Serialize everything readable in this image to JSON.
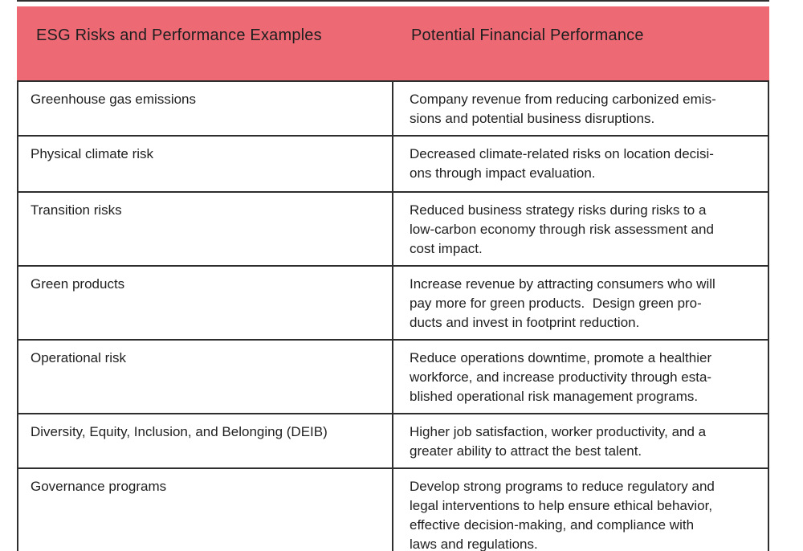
{
  "figure": {
    "header": {
      "left": "ESG Risks and Performance Examples",
      "right": "Potential Financial Performance"
    },
    "rows": [
      {
        "risk": "Greenhouse gas emissions",
        "performance": "Company revenue from reducing carbonized emis-\nsions and potential business disruptions."
      },
      {
        "risk": "Physical climate risk",
        "performance": "Decreased climate-related risks on location decisi-\nons through impact evaluation."
      },
      {
        "risk": "Transition risks",
        "performance": "Reduced business strategy risks during risks to a\nlow-carbon economy through risk assessment and\ncost impact."
      },
      {
        "risk": "Green products",
        "performance": "Increase revenue by attracting consumers who will\npay more for green products.  Design green pro-\nducts and invest in footprint reduction."
      },
      {
        "risk": "Operational risk",
        "performance": "Reduce operations downtime, promote a healthier\nworkforce, and increase productivity through esta-\nblished operational risk management programs."
      },
      {
        "risk": "Diversity, Equity, Inclusion, and Belonging (DEIB)",
        "performance": "Higher job satisfaction, worker productivity, and a\ngreater ability to attract the best talent."
      },
      {
        "risk": "Governance programs",
        "performance": "Develop strong programs to reduce regulatory and\nlegal interventions to help ensure ethical behavior,\neffective decision-making, and compliance with\nlaws and regulations."
      }
    ]
  },
  "colors": {
    "header_bg": "#ed6a75",
    "border": "#2e2e2e",
    "text": "#1f1f1f"
  }
}
